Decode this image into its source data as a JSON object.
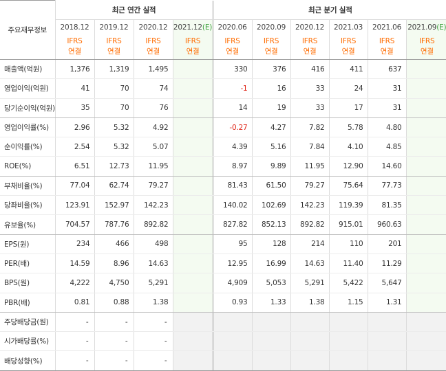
{
  "header": {
    "row_label": "주요재무정보",
    "annual_title": "최근 연간 실적",
    "quarter_title": "최근 분기 실적",
    "annual_periods": [
      "2018.12",
      "2019.12",
      "2020.12",
      "2021.12"
    ],
    "annual_est_mark": "(E)",
    "quarter_periods": [
      "2020.06",
      "2020.09",
      "2020.12",
      "2021.03",
      "2021.06",
      "2021.09"
    ],
    "quarter_est_mark": "(E)",
    "ifrs": "IFRS",
    "consol": "연결"
  },
  "rows": [
    {
      "label": "매출액(억원)",
      "annual": [
        "1,376",
        "1,319",
        "1,495",
        ""
      ],
      "quarter": [
        "330",
        "376",
        "416",
        "411",
        "637",
        ""
      ]
    },
    {
      "label": "영업이익(억원)",
      "annual": [
        "41",
        "70",
        "74",
        ""
      ],
      "quarter": [
        "-1",
        "16",
        "33",
        "24",
        "31",
        ""
      ]
    },
    {
      "label": "당기순이익(억원)",
      "annual": [
        "35",
        "70",
        "76",
        ""
      ],
      "quarter": [
        "14",
        "19",
        "33",
        "17",
        "31",
        ""
      ]
    },
    {
      "label": "영업이익률(%)",
      "annual": [
        "2.96",
        "5.32",
        "4.92",
        ""
      ],
      "quarter": [
        "-0.27",
        "4.27",
        "7.82",
        "5.78",
        "4.80",
        ""
      ]
    },
    {
      "label": "순이익률(%)",
      "annual": [
        "2.54",
        "5.32",
        "5.07",
        ""
      ],
      "quarter": [
        "4.39",
        "5.16",
        "7.84",
        "4.10",
        "4.85",
        ""
      ]
    },
    {
      "label": "ROE(%)",
      "annual": [
        "6.51",
        "12.73",
        "11.95",
        ""
      ],
      "quarter": [
        "8.97",
        "9.89",
        "11.95",
        "12.90",
        "14.60",
        ""
      ]
    },
    {
      "label": "부채비율(%)",
      "annual": [
        "77.04",
        "62.74",
        "79.27",
        ""
      ],
      "quarter": [
        "81.43",
        "61.50",
        "79.27",
        "75.64",
        "77.73",
        ""
      ]
    },
    {
      "label": "당좌비율(%)",
      "annual": [
        "123.91",
        "152.97",
        "142.23",
        ""
      ],
      "quarter": [
        "140.02",
        "102.69",
        "142.23",
        "119.39",
        "81.35",
        ""
      ]
    },
    {
      "label": "유보율(%)",
      "annual": [
        "704.57",
        "787.76",
        "892.82",
        ""
      ],
      "quarter": [
        "827.82",
        "852.13",
        "892.82",
        "915.01",
        "960.63",
        ""
      ]
    },
    {
      "label": "EPS(원)",
      "annual": [
        "234",
        "466",
        "498",
        ""
      ],
      "quarter": [
        "95",
        "128",
        "214",
        "110",
        "201",
        ""
      ]
    },
    {
      "label": "PER(배)",
      "annual": [
        "14.59",
        "8.96",
        "14.63",
        ""
      ],
      "quarter": [
        "12.95",
        "16.99",
        "14.63",
        "11.40",
        "11.29",
        ""
      ]
    },
    {
      "label": "BPS(원)",
      "annual": [
        "4,222",
        "4,750",
        "5,291",
        ""
      ],
      "quarter": [
        "4,909",
        "5,053",
        "5,291",
        "5,422",
        "5,647",
        ""
      ]
    },
    {
      "label": "PBR(배)",
      "annual": [
        "0.81",
        "0.88",
        "1.38",
        ""
      ],
      "quarter": [
        "0.93",
        "1.33",
        "1.38",
        "1.15",
        "1.31",
        ""
      ]
    },
    {
      "label": "주당배당금(원)",
      "annual": [
        "-",
        "-",
        "-",
        ""
      ],
      "quarter": [
        "",
        "",
        "",
        "",
        "",
        ""
      ]
    },
    {
      "label": "시가배당률(%)",
      "annual": [
        "-",
        "-",
        "-",
        ""
      ],
      "quarter": [
        "",
        "",
        "",
        "",
        "",
        ""
      ]
    },
    {
      "label": "배당성향(%)",
      "annual": [
        "-",
        "-",
        "-",
        ""
      ],
      "quarter": [
        "",
        "",
        "",
        "",
        "",
        ""
      ]
    }
  ],
  "colors": {
    "negative": "#e0271a",
    "ifrs": "#ff6c00",
    "estimate": "#3fa23f",
    "estimate_bg": "#f4fbf1"
  }
}
